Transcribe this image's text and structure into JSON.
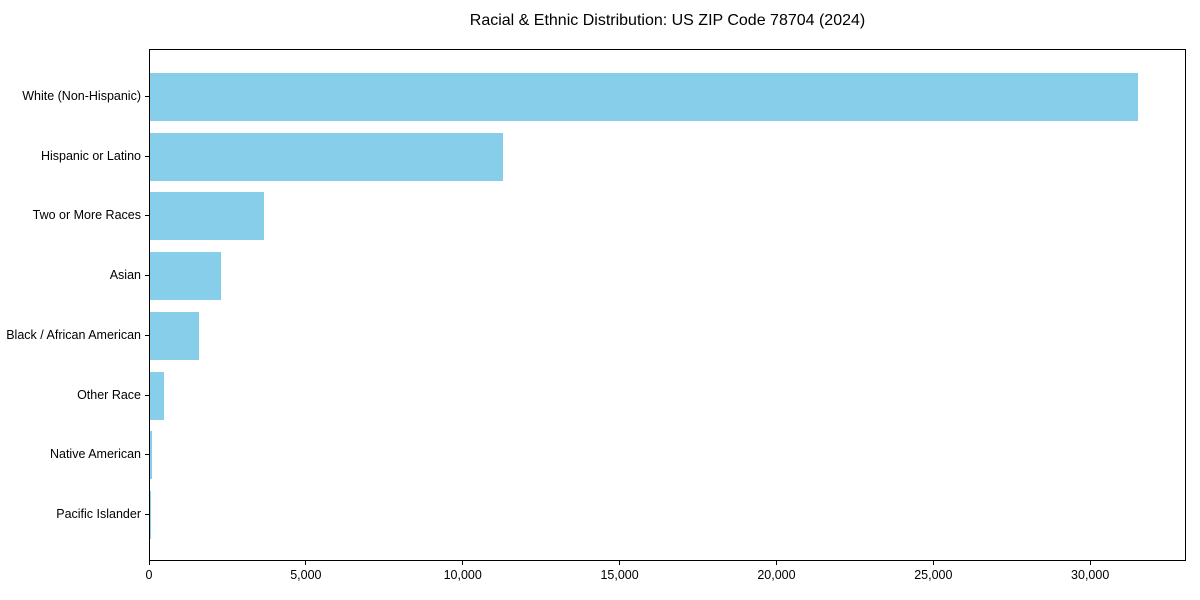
{
  "chart_data": {
    "type": "bar",
    "orientation": "horizontal",
    "title": "Racial & Ethnic Distribution: US ZIP Code 78704 (2024)",
    "categories": [
      "White (Non-Hispanic)",
      "Hispanic or Latino",
      "Two or More Races",
      "Asian",
      "Black / African American",
      "Other Race",
      "Native American",
      "Pacific Islander"
    ],
    "values": [
      31480,
      11250,
      3620,
      2260,
      1550,
      440,
      55,
      15
    ],
    "xlabel": "",
    "ylabel": "",
    "xlim": [
      0,
      33054
    ],
    "x_ticks": [
      0,
      5000,
      10000,
      15000,
      20000,
      25000,
      30000
    ],
    "x_tick_labels": [
      "0",
      "5,000",
      "10,000",
      "15,000",
      "20,000",
      "25,000",
      "30,000"
    ],
    "bar_color": "#87CEEB",
    "axis_color": "#000000",
    "text_color": "#000000",
    "bar_height_fraction": 0.8,
    "grid": false,
    "legend": false
  }
}
